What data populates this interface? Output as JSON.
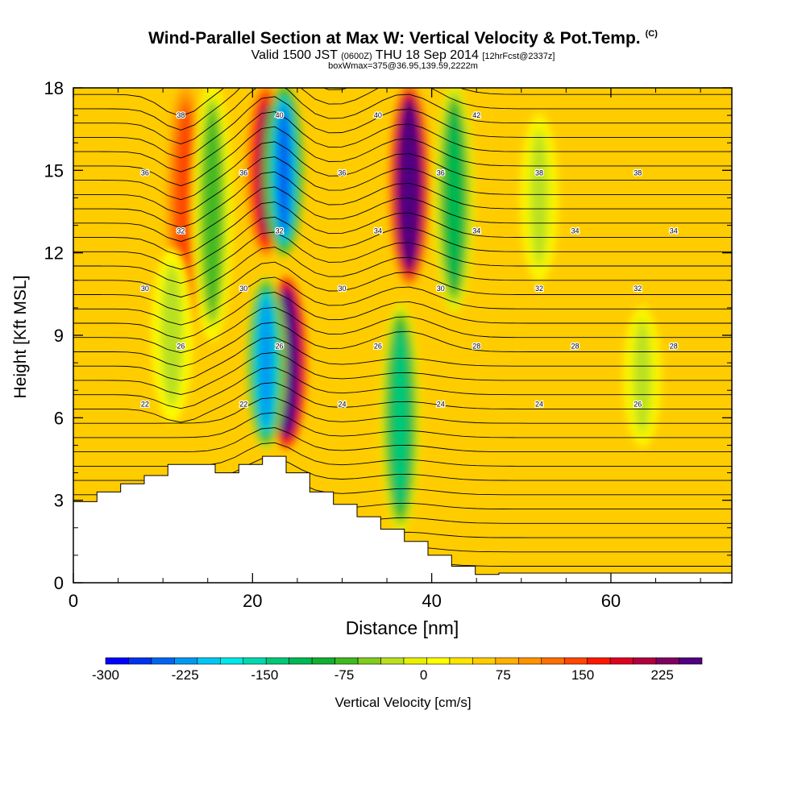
{
  "title": {
    "main": "Wind-Parallel Section at Max W: Vertical Velocity & Pot.Temp.",
    "copyright": "(C)",
    "valid_prefix": "Valid 1500 JST",
    "utc": "(0600Z)",
    "valid_date": "THU 18 Sep 2014",
    "forecast": "[12hrFcst@2337z]",
    "box": "boxWmax=375@36.95,139.59,2222m"
  },
  "chart_data": {
    "type": "heatmap",
    "xlabel": "Distance [nm]",
    "ylabel": "Height [Kft MSL]",
    "xlim": [
      0,
      73.5
    ],
    "ylim": [
      0,
      18
    ],
    "x_ticks": [
      "0",
      "20",
      "40",
      "60"
    ],
    "y_ticks": [
      "0",
      "3",
      "6",
      "9",
      "12",
      "15",
      "18"
    ],
    "colorbar": {
      "label": "Vertical Velocity [cm/s]",
      "tick_labels": [
        "-300",
        "-225",
        "-150",
        "-75",
        "0",
        "75",
        "150",
        "225"
      ],
      "min": -300,
      "max": 262.5,
      "step": 18.75,
      "colors": [
        "#0000ff",
        "#0033ee",
        "#0066f0",
        "#0099f2",
        "#00c8f4",
        "#00e8e8",
        "#00d8b0",
        "#00c878",
        "#00b850",
        "#10b030",
        "#40b820",
        "#80cc20",
        "#b8e020",
        "#e8f000",
        "#ffff00",
        "#ffe400",
        "#ffcc00",
        "#ffb000",
        "#ff9400",
        "#ff7000",
        "#ff4800",
        "#ff1800",
        "#e00020",
        "#b00040",
        "#800060",
        "#500080"
      ]
    },
    "vertical_velocity_features": [
      {
        "kind": "updraft",
        "x": 12.5,
        "y_range": [
          9,
          18
        ],
        "peak_cms": 90
      },
      {
        "kind": "downdraft",
        "x": 15.5,
        "y_range": [
          9,
          18
        ],
        "peak_cms": -110
      },
      {
        "kind": "updraft",
        "x": 21.5,
        "y_range": [
          12,
          18
        ],
        "peak_cms": 150
      },
      {
        "kind": "downdraft",
        "x": 23.5,
        "y_range": [
          12,
          18
        ],
        "peak_cms": -260
      },
      {
        "kind": "updraft",
        "x": 23.8,
        "y_range": [
          5,
          11
        ],
        "peak_cms": 262
      },
      {
        "kind": "downdraft",
        "x": 21.5,
        "y_range": [
          5,
          11
        ],
        "peak_cms": -240
      },
      {
        "kind": "updraft",
        "x": 37.5,
        "y_range": [
          11,
          18
        ],
        "peak_cms": 240
      },
      {
        "kind": "downdraft",
        "x": 42.5,
        "y_range": [
          10,
          18
        ],
        "peak_cms": -150
      },
      {
        "kind": "downdraft",
        "x": 36.5,
        "y_range": [
          2,
          10
        ],
        "peak_cms": -160
      },
      {
        "kind": "downdraft",
        "x": 52,
        "y_range": [
          11,
          17
        ],
        "peak_cms": -60
      },
      {
        "kind": "downdraft",
        "x": 63.5,
        "y_range": [
          5,
          10
        ],
        "peak_cms": -60
      },
      {
        "kind": "downdraft",
        "x": 11,
        "y_range": [
          6,
          12
        ],
        "peak_cms": -75
      }
    ],
    "potential_temperature_contour_labels": [
      "22",
      "22",
      "24",
      "24",
      "24",
      "26",
      "26",
      "26",
      "26",
      "28",
      "28",
      "28",
      "30",
      "30",
      "30",
      "30",
      "32",
      "32",
      "32",
      "32",
      "34",
      "34",
      "34",
      "34",
      "36",
      "36",
      "36",
      "36",
      "38",
      "38",
      "38",
      "40",
      "40",
      "42"
    ],
    "terrain_heights_kft": [
      2.95,
      3.3,
      3.6,
      3.9,
      4.3,
      4.3,
      4.0,
      4.3,
      4.6,
      4.0,
      3.3,
      2.85,
      2.4,
      1.95,
      1.5,
      1.0,
      0.6,
      0.3
    ]
  }
}
